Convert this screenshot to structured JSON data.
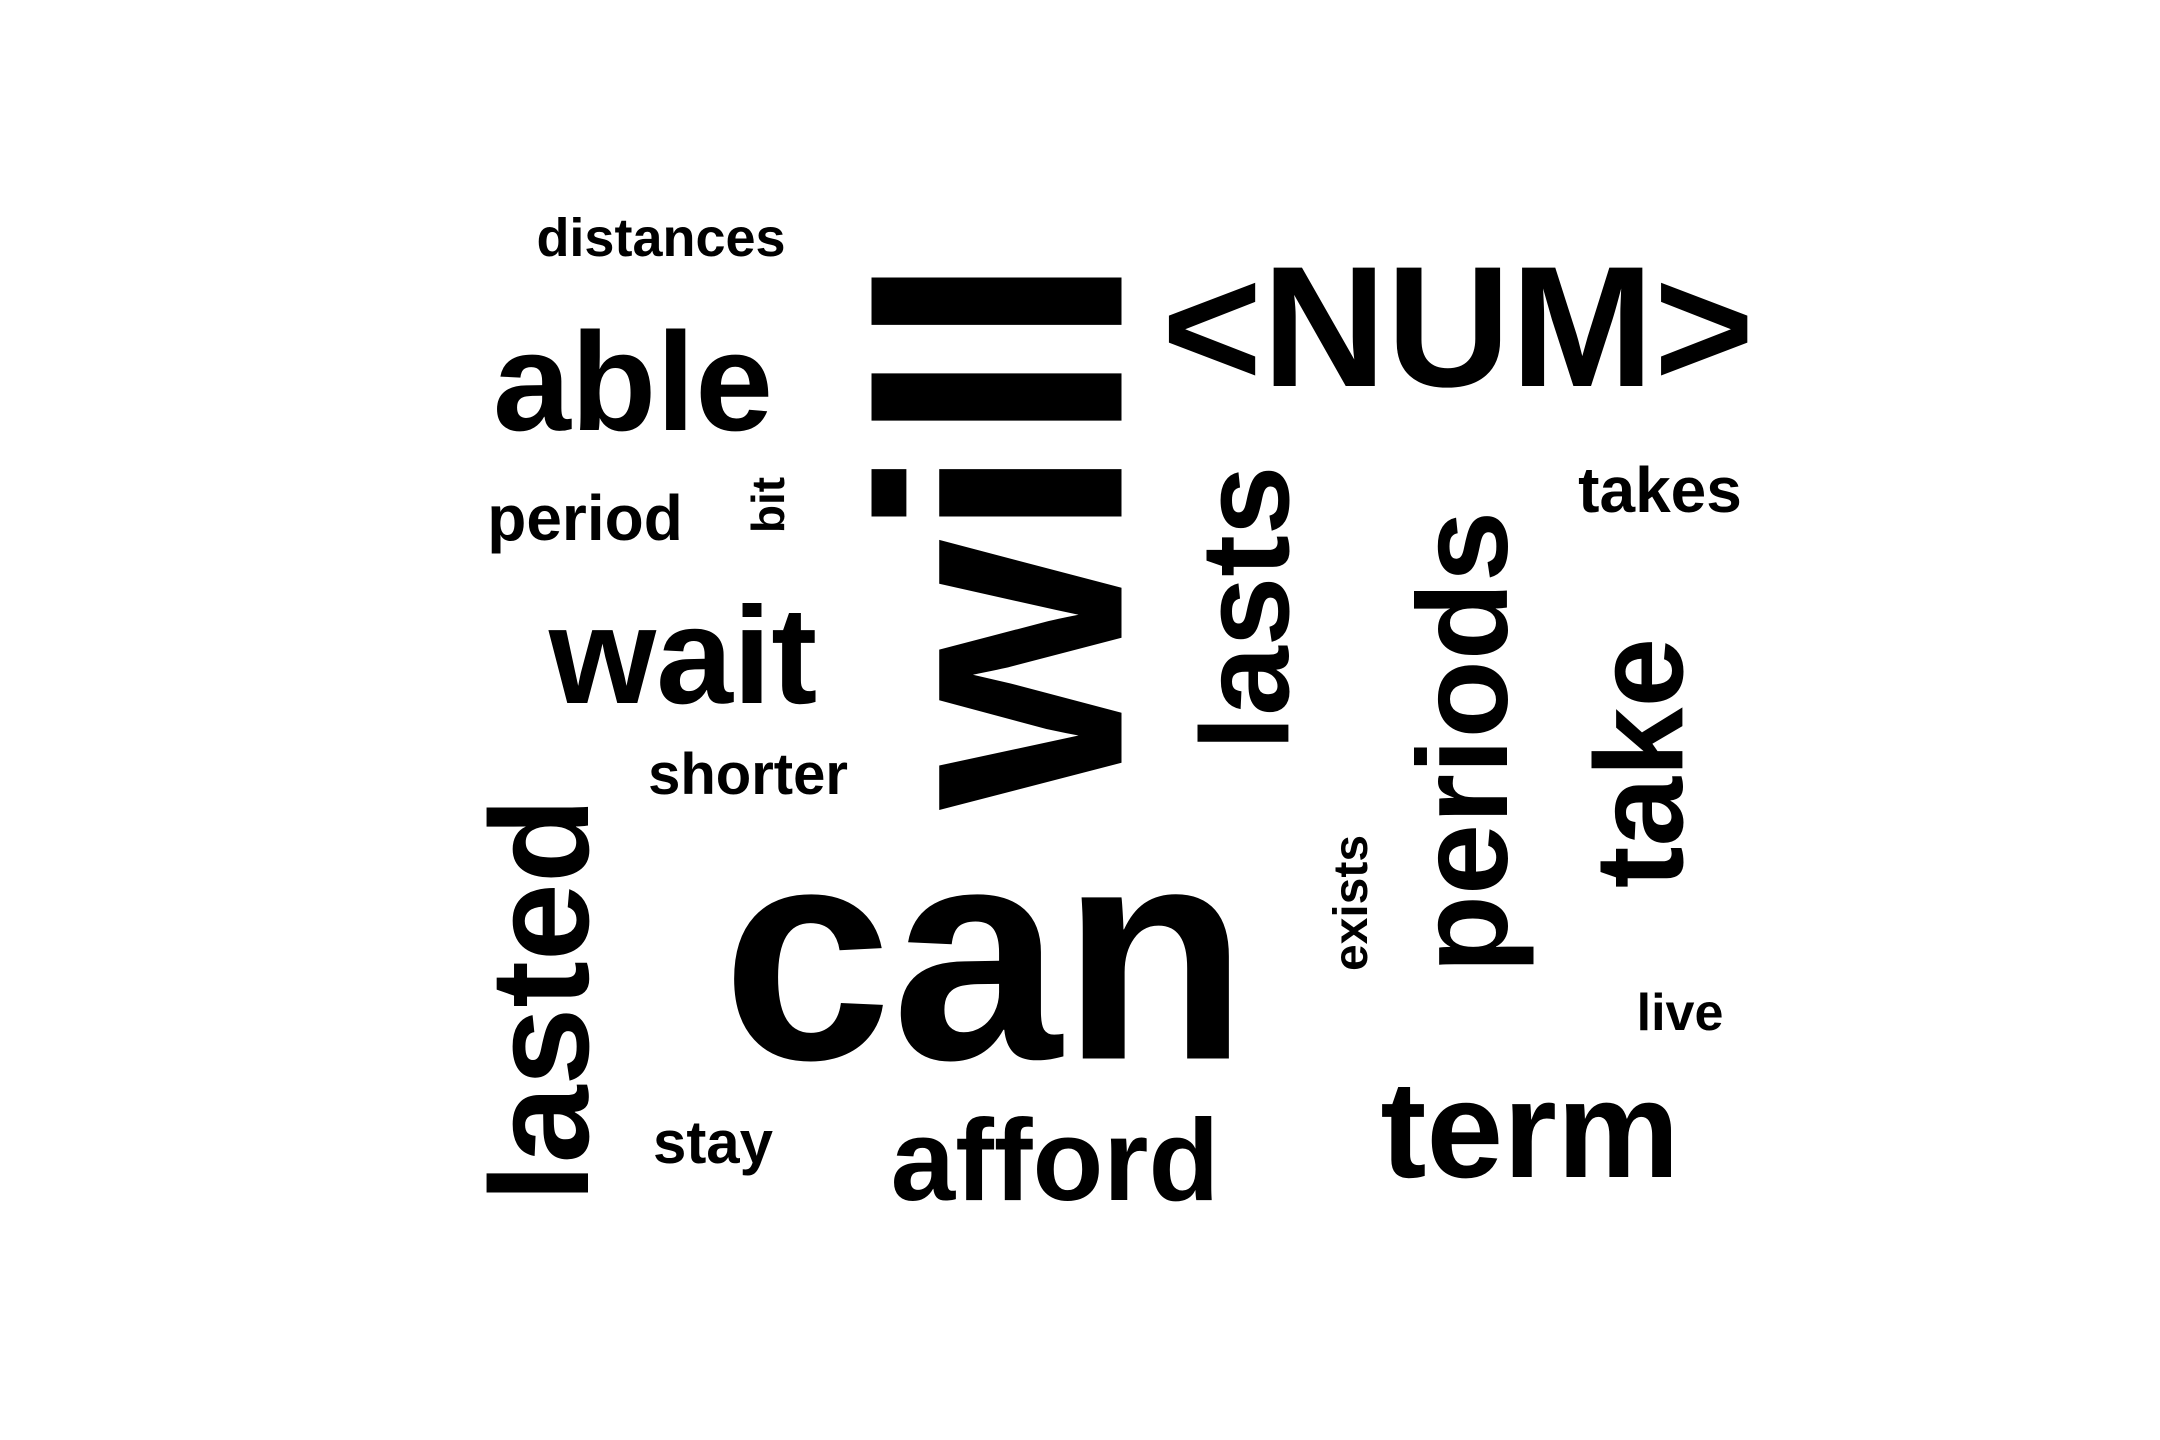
{
  "wordcloud": {
    "background": "#ffffff",
    "text_color": "#000000",
    "words": {
      "will": "will",
      "can": "can",
      "num": "<NUM>",
      "lasted": "lasted",
      "able": "able",
      "wait": "wait",
      "term": "term",
      "periods": "periods",
      "lasts": "lasts",
      "take": "take",
      "afford": "afford",
      "distances": "distances",
      "period": "period",
      "bit": "bit",
      "takes": "takes",
      "shorter": "shorter",
      "exists": "exists",
      "live": "live",
      "stay": "stay"
    }
  }
}
